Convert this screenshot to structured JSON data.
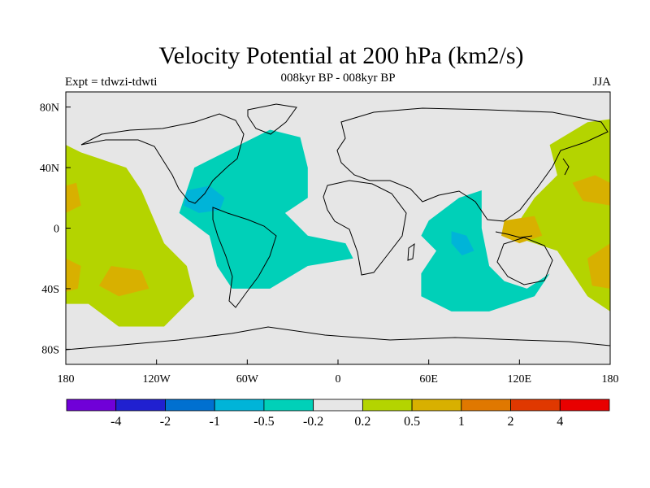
{
  "title": "Velocity Potential at 200 hPa (km2/s)",
  "experiment": "Expt = tdwzi-tdwti",
  "subtitle": "008kyr BP - 008kyr BP",
  "season": "JJA",
  "colors": {
    "land_outline": "#000000",
    "background_field": "#e6e6e6",
    "negative_fill": "#00d0b8",
    "positive_fill": "#b4d400"
  },
  "map": {
    "projection": "cylindrical-equidistant",
    "lon_range": [
      -180,
      180
    ],
    "lat_range": [
      -90,
      90
    ],
    "lon_ticks": [
      {
        "value": -180,
        "label": "180"
      },
      {
        "value": -120,
        "label": "120W"
      },
      {
        "value": -60,
        "label": "60W"
      },
      {
        "value": 0,
        "label": "0"
      },
      {
        "value": 60,
        "label": "60E"
      },
      {
        "value": 120,
        "label": "120E"
      },
      {
        "value": 180,
        "label": "180"
      }
    ],
    "lat_ticks": [
      {
        "value": 80,
        "label": "80N"
      },
      {
        "value": 40,
        "label": "40N"
      },
      {
        "value": 0,
        "label": "0"
      },
      {
        "value": -40,
        "label": "40S"
      },
      {
        "value": -80,
        "label": "80S"
      }
    ]
  },
  "colorbar": {
    "colors": [
      "#7000d8",
      "#2020d0",
      "#0070d0",
      "#00b4d8",
      "#00d0b8",
      "#e6e6e6",
      "#b4d400",
      "#d8b000",
      "#e07800",
      "#e03800",
      "#e80000"
    ],
    "labels": [
      "-4",
      "-2",
      "-1",
      "-0.5",
      "-0.2",
      "0.2",
      "0.5",
      "1",
      "2",
      "4"
    ]
  },
  "chart_data": {
    "type": "heatmap",
    "title": "Velocity Potential at 200 hPa (km2/s)",
    "subtitle": "008kyr BP - 008kyr BP",
    "levels": [
      -4,
      -2,
      -1,
      -0.5,
      -0.2,
      0.2,
      0.5,
      1,
      2,
      4
    ],
    "regions": [
      {
        "name": "",
        "value_range": [
          -0.5,
          -0.2
        ],
        "polygon_lonlat": [
          [
            -95,
            40
          ],
          [
            -65,
            55
          ],
          [
            -45,
            65
          ],
          [
            -25,
            60
          ],
          [
            -20,
            40
          ],
          [
            -20,
            20
          ],
          [
            -35,
            10
          ],
          [
            -20,
            -5
          ],
          [
            5,
            -10
          ],
          [
            10,
            -20
          ],
          [
            -20,
            -25
          ],
          [
            -45,
            -40
          ],
          [
            -70,
            -40
          ],
          [
            -80,
            -25
          ],
          [
            -85,
            -5
          ],
          [
            -105,
            10
          ],
          [
            -100,
            25
          ]
        ]
      },
      {
        "name": "",
        "value_range": [
          -1,
          -0.5
        ],
        "polygon_lonlat": [
          [
            -100,
            25
          ],
          [
            -85,
            28
          ],
          [
            -75,
            20
          ],
          [
            -78,
            12
          ],
          [
            -92,
            10
          ],
          [
            -102,
            15
          ]
        ]
      },
      {
        "name": "",
        "value_range": [
          -0.5,
          -0.2
        ],
        "polygon_lonlat": [
          [
            60,
            5
          ],
          [
            80,
            20
          ],
          [
            95,
            25
          ],
          [
            95,
            0
          ],
          [
            100,
            -25
          ],
          [
            110,
            -35
          ],
          [
            125,
            -40
          ],
          [
            140,
            -30
          ],
          [
            130,
            -45
          ],
          [
            100,
            -55
          ],
          [
            75,
            -55
          ],
          [
            55,
            -45
          ],
          [
            55,
            -30
          ],
          [
            65,
            -15
          ],
          [
            55,
            -5
          ]
        ]
      },
      {
        "name": "",
        "value_range": [
          -1,
          -0.5
        ],
        "polygon_lonlat": [
          [
            75,
            -2
          ],
          [
            85,
            -5
          ],
          [
            90,
            -15
          ],
          [
            82,
            -18
          ],
          [
            75,
            -10
          ]
        ]
      },
      {
        "name": "",
        "value_range": [
          0.2,
          0.5
        ],
        "polygon_lonlat": [
          [
            -180,
            55
          ],
          [
            -170,
            50
          ],
          [
            -140,
            40
          ],
          [
            -130,
            25
          ],
          [
            -115,
            -10
          ],
          [
            -100,
            -25
          ],
          [
            -95,
            -45
          ],
          [
            -115,
            -65
          ],
          [
            -145,
            -65
          ],
          [
            -165,
            -50
          ],
          [
            -180,
            -50
          ]
        ]
      },
      {
        "name": "",
        "value_range": [
          0.5,
          1
        ],
        "polygon_lonlat": [
          [
            -180,
            28
          ],
          [
            -173,
            30
          ],
          [
            -170,
            15
          ],
          [
            -180,
            10
          ]
        ]
      },
      {
        "name": "",
        "value_range": [
          0.5,
          1
        ],
        "polygon_lonlat": [
          [
            -180,
            -20
          ],
          [
            -170,
            -25
          ],
          [
            -172,
            -40
          ],
          [
            -180,
            -42
          ]
        ]
      },
      {
        "name": "",
        "value_range": [
          0.5,
          1
        ],
        "polygon_lonlat": [
          [
            -150,
            -25
          ],
          [
            -130,
            -28
          ],
          [
            -125,
            -40
          ],
          [
            -145,
            -45
          ],
          [
            -158,
            -38
          ]
        ]
      },
      {
        "name": "",
        "value_range": [
          0.2,
          0.5
        ],
        "polygon_lonlat": [
          [
            120,
            5
          ],
          [
            130,
            20
          ],
          [
            145,
            35
          ],
          [
            140,
            55
          ],
          [
            165,
            70
          ],
          [
            180,
            72
          ],
          [
            180,
            -55
          ],
          [
            165,
            -45
          ],
          [
            145,
            -15
          ],
          [
            130,
            -10
          ],
          [
            115,
            -5
          ]
        ]
      },
      {
        "name": "",
        "value_range": [
          0.5,
          1
        ],
        "polygon_lonlat": [
          [
            155,
            30
          ],
          [
            170,
            35
          ],
          [
            180,
            30
          ],
          [
            180,
            15
          ],
          [
            162,
            18
          ]
        ]
      },
      {
        "name": "",
        "value_range": [
          0.5,
          1
        ],
        "polygon_lonlat": [
          [
            165,
            -20
          ],
          [
            180,
            -10
          ],
          [
            180,
            -40
          ],
          [
            168,
            -38
          ]
        ]
      },
      {
        "name": "",
        "value_range": [
          0.5,
          1
        ],
        "polygon_lonlat": [
          [
            110,
            5
          ],
          [
            130,
            8
          ],
          [
            135,
            -5
          ],
          [
            120,
            -10
          ],
          [
            108,
            -5
          ]
        ]
      }
    ],
    "xlabel": "",
    "ylabel": "",
    "xlim": [
      -180,
      180
    ],
    "ylim": [
      -90,
      90
    ]
  }
}
